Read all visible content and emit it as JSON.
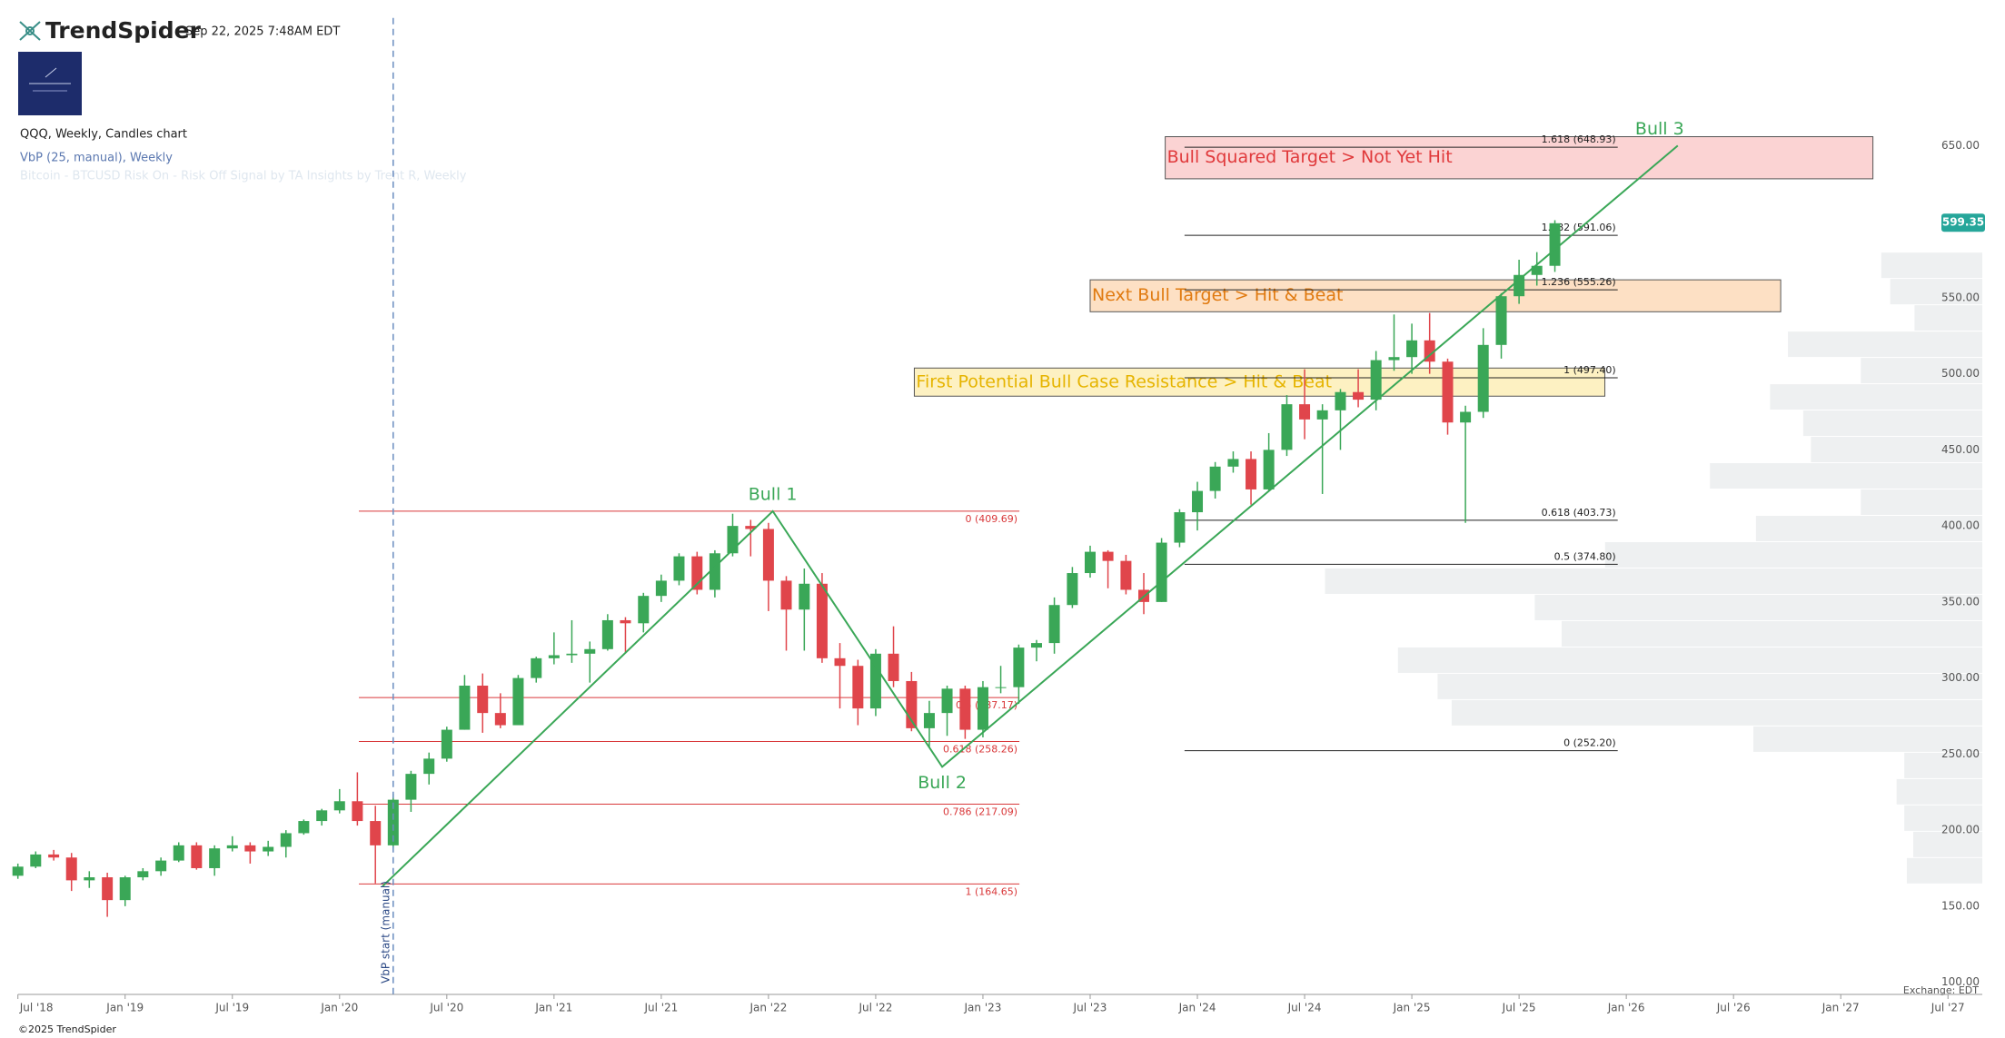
{
  "chart_data": {
    "type": "candlestick",
    "brand": "TrendSpider",
    "timestamp": "Sep 22, 2025 7:48AM EDT",
    "title": "QQQ, Weekly, Candles chart",
    "indicators": [
      "VbP (25, manual), Weekly",
      "Bitcoin - BTCUSD Risk On - Risk Off Signal by TA Insights by Trent R, Weekly"
    ],
    "copyright": "©2025 TrendSpider",
    "exchange_note": "Exchange: EDT",
    "xlim": [
      2018.5,
      2027.66
    ],
    "ylim": [
      92,
      734
    ],
    "xticks": [
      {
        "value": 2018.5,
        "label": "Jul '18"
      },
      {
        "value": 2019.0,
        "label": "Jan '19"
      },
      {
        "value": 2019.5,
        "label": "Jul '19"
      },
      {
        "value": 2020.0,
        "label": "Jan '20"
      },
      {
        "value": 2020.5,
        "label": "Jul '20"
      },
      {
        "value": 2021.0,
        "label": "Jan '21"
      },
      {
        "value": 2021.5,
        "label": "Jul '21"
      },
      {
        "value": 2022.0,
        "label": "Jan '22"
      },
      {
        "value": 2022.5,
        "label": "Jul '22"
      },
      {
        "value": 2023.0,
        "label": "Jan '23"
      },
      {
        "value": 2023.5,
        "label": "Jul '23"
      },
      {
        "value": 2024.0,
        "label": "Jan '24"
      },
      {
        "value": 2024.5,
        "label": "Jul '24"
      },
      {
        "value": 2025.0,
        "label": "Jan '25"
      },
      {
        "value": 2025.5,
        "label": "Jul '25"
      },
      {
        "value": 2026.0,
        "label": "Jan '26"
      },
      {
        "value": 2026.5,
        "label": "Jul '26"
      },
      {
        "value": 2027.0,
        "label": "Jan '27"
      },
      {
        "value": 2027.5,
        "label": "Jul '27"
      }
    ],
    "yticks": [
      {
        "value": 100,
        "label": "100.00"
      },
      {
        "value": 150,
        "label": "150.00"
      },
      {
        "value": 200,
        "label": "200.00"
      },
      {
        "value": 250,
        "label": "250.00"
      },
      {
        "value": 300,
        "label": "300.00"
      },
      {
        "value": 350,
        "label": "350.00"
      },
      {
        "value": 400,
        "label": "400.00"
      },
      {
        "value": 450,
        "label": "450.00"
      },
      {
        "value": 500,
        "label": "500.00"
      },
      {
        "value": 550,
        "label": "550.00"
      },
      {
        "value": 600,
        "label": "600.00"
      },
      {
        "value": 650,
        "label": "650.00"
      }
    ],
    "up_color": "#3aa757",
    "down_color": "#e0454b",
    "candles": {
      "x": [
        2018.5,
        2018.583,
        2018.667,
        2018.75,
        2018.833,
        2018.917,
        2019.0,
        2019.083,
        2019.167,
        2019.25,
        2019.333,
        2019.417,
        2019.5,
        2019.583,
        2019.667,
        2019.75,
        2019.833,
        2019.917,
        2020.0,
        2020.083,
        2020.167,
        2020.25,
        2020.333,
        2020.417,
        2020.5,
        2020.583,
        2020.667,
        2020.75,
        2020.833,
        2020.917,
        2021.0,
        2021.083,
        2021.167,
        2021.25,
        2021.333,
        2021.417,
        2021.5,
        2021.583,
        2021.667,
        2021.75,
        2021.833,
        2021.917,
        2022.0,
        2022.083,
        2022.167,
        2022.25,
        2022.333,
        2022.417,
        2022.5,
        2022.583,
        2022.667,
        2022.75,
        2022.833,
        2022.917,
        2023.0,
        2023.083,
        2023.167,
        2023.25,
        2023.333,
        2023.417,
        2023.5,
        2023.583,
        2023.667,
        2023.75,
        2023.833,
        2023.917,
        2024.0,
        2024.083,
        2024.167,
        2024.25,
        2024.333,
        2024.417,
        2024.5,
        2024.583,
        2024.667,
        2024.75,
        2024.833,
        2024.917,
        2025.0,
        2025.083,
        2025.167,
        2025.25,
        2025.333,
        2025.417,
        2025.5,
        2025.583,
        2025.667
      ],
      "open": [
        170,
        176,
        184,
        182,
        167,
        169,
        154,
        169,
        173,
        180,
        190,
        175,
        188,
        190,
        186,
        189,
        198,
        206,
        213,
        219,
        206,
        190,
        220,
        237,
        247,
        266,
        295,
        277,
        269,
        300,
        313,
        315,
        316,
        319,
        338,
        336,
        354,
        364,
        380,
        358,
        382,
        400,
        398,
        364,
        345,
        362,
        313,
        308,
        280,
        316,
        298,
        267,
        277,
        293,
        266,
        294,
        294,
        320,
        323,
        348,
        369,
        383,
        377,
        358,
        350,
        389,
        409,
        423,
        439,
        444,
        424,
        450,
        480,
        470,
        476,
        488,
        483,
        509,
        511,
        522,
        508,
        468,
        475,
        519,
        551,
        565,
        571
      ],
      "high": [
        178,
        186,
        187,
        185,
        173,
        172,
        170,
        175,
        182,
        192,
        192,
        190,
        196,
        192,
        193,
        200,
        207,
        214,
        227,
        238,
        216,
        224,
        239,
        251,
        268,
        302,
        303,
        290,
        302,
        314,
        330,
        338,
        324,
        342,
        340,
        356,
        368,
        382,
        383,
        384,
        408,
        404,
        402,
        367,
        372,
        369,
        323,
        312,
        319,
        334,
        304,
        285,
        295,
        295,
        298,
        308,
        322,
        325,
        353,
        373,
        387,
        384,
        381,
        369,
        392,
        411,
        429,
        442,
        449,
        449,
        461,
        486,
        503,
        480,
        490,
        503,
        515,
        539,
        533,
        540,
        510,
        479,
        530,
        553,
        575,
        580,
        601
      ],
      "low": [
        168,
        175,
        180,
        160,
        162,
        143,
        150,
        167,
        170,
        179,
        174,
        170,
        186,
        178,
        183,
        182,
        197,
        203,
        211,
        203,
        165,
        188,
        212,
        230,
        245,
        266,
        264,
        267,
        270,
        297,
        309,
        310,
        297,
        318,
        317,
        330,
        350,
        361,
        355,
        353,
        380,
        380,
        344,
        318,
        318,
        310,
        280,
        269,
        275,
        294,
        265,
        254,
        262,
        260,
        261,
        290,
        283,
        311,
        316,
        346,
        366,
        359,
        355,
        342,
        350,
        386,
        397,
        418,
        435,
        414,
        423,
        446,
        457,
        421,
        450,
        478,
        476,
        502,
        500,
        500,
        460,
        402,
        471,
        510,
        546,
        558,
        567
      ],
      "close": [
        176,
        184,
        182,
        167,
        169,
        154,
        169,
        173,
        180,
        190,
        175,
        188,
        190,
        186,
        189,
        198,
        206,
        213,
        219,
        206,
        190,
        220,
        237,
        247,
        266,
        295,
        277,
        269,
        300,
        313,
        315,
        316,
        319,
        338,
        336,
        354,
        364,
        380,
        358,
        382,
        400,
        398,
        364,
        345,
        362,
        313,
        308,
        280,
        316,
        298,
        267,
        277,
        293,
        266,
        294,
        294,
        320,
        323,
        348,
        369,
        383,
        377,
        358,
        350,
        389,
        409,
        423,
        439,
        444,
        424,
        450,
        480,
        470,
        476,
        488,
        483,
        509,
        511,
        522,
        508,
        468,
        475,
        519,
        551,
        565,
        571,
        599
      ]
    },
    "last_price": 599.35,
    "volume_profile": {
      "color": "#eef0f1",
      "bins": [
        164.65,
        181.96,
        199.26,
        216.57,
        233.87,
        251.18,
        268.49,
        285.79,
        303.1,
        320.4,
        337.71,
        355.02,
        372.32,
        389.63,
        406.93,
        424.24,
        441.55,
        458.85,
        476.16,
        493.46,
        510.77,
        528.08,
        545.38,
        562.69,
        579.99
      ],
      "values": [
        59,
        54,
        61,
        67,
        61,
        179,
        415,
        426,
        457,
        329,
        350,
        514,
        295,
        177,
        95,
        213,
        134,
        140,
        166,
        95,
        152,
        53,
        72,
        79
      ]
    },
    "fib_sets": [
      {
        "color": "#d9383a",
        "x": [
          2020.09,
          2023.17
        ],
        "label_side": "below",
        "levels": [
          {
            "value": 409.69,
            "label": "0 (409.69)"
          },
          {
            "value": 287.17,
            "label": "0.5 (287.17)"
          },
          {
            "value": 258.26,
            "label": "0.618 (258.26)"
          },
          {
            "value": 217.09,
            "label": "0.786 (217.09)"
          },
          {
            "value": 164.65,
            "label": "1 (164.65)"
          }
        ]
      },
      {
        "color": "#222222",
        "x": [
          2023.94,
          2025.96
        ],
        "label_side": "above",
        "levels": [
          {
            "value": 252.2,
            "label": "0 (252.20)"
          },
          {
            "value": 374.8,
            "label": "0.5 (374.80)"
          },
          {
            "value": 403.73,
            "label": "0.618 (403.73)"
          },
          {
            "value": 497.4,
            "label": "1 (497.40)"
          },
          {
            "value": 555.26,
            "label": "1.236 (555.26)"
          },
          {
            "value": 591.06,
            "label": "1.382 (591.06)"
          },
          {
            "value": 648.93,
            "label": "1.618 (648.93)"
          }
        ]
      }
    ],
    "zones": [
      {
        "label": "Bull Squared Target > Not Yet Hit",
        "x": [
          2023.85,
          2027.15
        ],
        "bottom": 628.2,
        "top": 655.9,
        "fill": "#fbd3d3",
        "color": "#e0393b"
      },
      {
        "label": "Next Bull Target > Hit & Beat",
        "x": [
          2023.5,
          2026.72
        ],
        "bottom": 540.8,
        "top": 561.8,
        "fill": "#fde0c4",
        "color": "#e07a10"
      },
      {
        "label": "First Potential Bull Case Resistance > Hit & Beat",
        "x": [
          2022.68,
          2025.9
        ],
        "bottom": 485.3,
        "top": 503.8,
        "fill": "#fdf1c2",
        "color": "#e6b400"
      }
    ],
    "bull_path": {
      "color": "#3aa757",
      "x": [
        2020.2,
        2022.02,
        2022.81,
        2026.24
      ],
      "y": [
        163,
        409.7,
        241.6,
        650
      ],
      "labels": [
        null,
        "Bull 1",
        "Bull 2",
        "Bull 3"
      ]
    },
    "vbp_start": {
      "x": 2020.25,
      "label": "VbP start (manual)",
      "color": "#6a8cc0"
    }
  }
}
